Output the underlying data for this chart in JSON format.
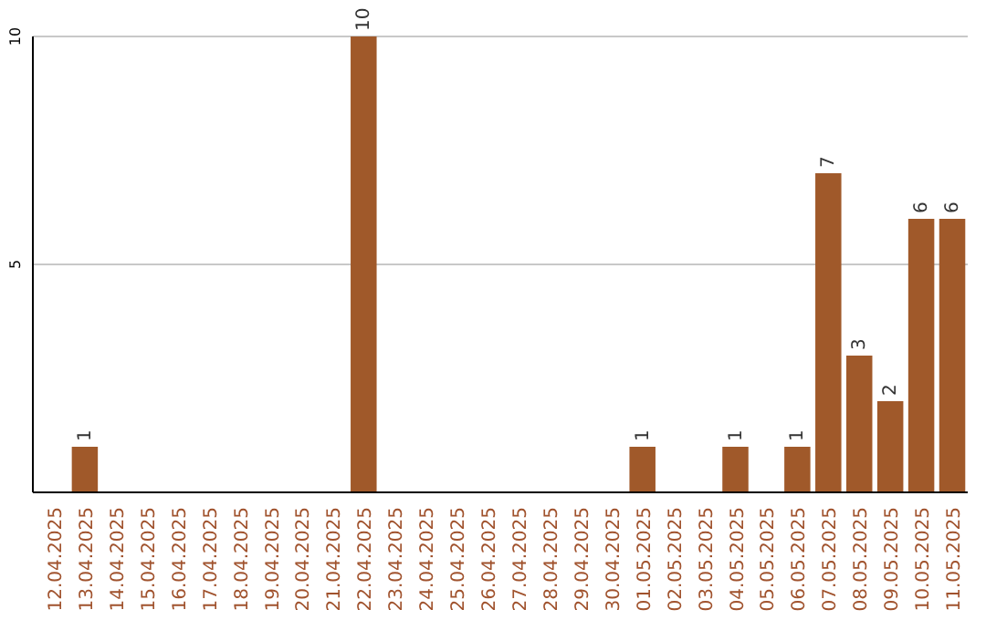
{
  "chart_data": {
    "type": "bar",
    "categories": [
      "12.04.2025",
      "13.04.2025",
      "14.04.2025",
      "15.04.2025",
      "16.04.2025",
      "17.04.2025",
      "18.04.2025",
      "19.04.2025",
      "20.04.2025",
      "21.04.2025",
      "22.04.2025",
      "23.04.2025",
      "24.04.2025",
      "25.04.2025",
      "26.04.2025",
      "27.04.2025",
      "28.04.2025",
      "29.04.2025",
      "30.04.2025",
      "01.05.2025",
      "02.05.2025",
      "03.05.2025",
      "04.05.2025",
      "05.05.2025",
      "06.05.2025",
      "07.05.2025",
      "08.05.2025",
      "09.05.2025",
      "10.05.2025",
      "11.05.2025"
    ],
    "values": [
      null,
      1,
      null,
      null,
      null,
      null,
      null,
      null,
      null,
      null,
      10,
      null,
      null,
      null,
      null,
      null,
      null,
      null,
      null,
      1,
      null,
      null,
      1,
      null,
      1,
      7,
      3,
      2,
      6,
      6
    ],
    "color": "#a0592a",
    "ylim": [
      0,
      10
    ],
    "yticks": [
      5,
      10
    ],
    "grid": "y",
    "data_labels": true
  }
}
